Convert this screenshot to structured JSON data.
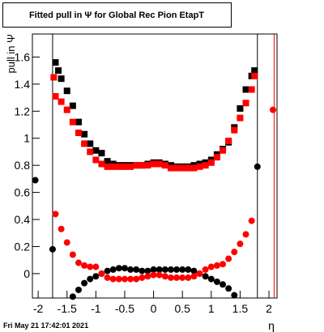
{
  "chart_data": {
    "type": "scatter",
    "title": "Fitted pull in  Ψ  for Global Rec Pion EtapT",
    "y_label": "pull in  Ψ",
    "x_label": "η",
    "footer": "Fri May 21 17:42:01 2021",
    "xlim": [
      -2.1,
      2.14
    ],
    "ylim": [
      -0.18,
      1.77
    ],
    "xticks": [
      -2,
      -1.5,
      -1,
      -0.5,
      0,
      0.5,
      1,
      1.5,
      2
    ],
    "yticks": [
      0,
      0.2,
      0.4,
      0.6,
      0.8,
      1,
      1.2,
      1.4,
      1.6
    ],
    "vlines": [
      {
        "x": -1.75,
        "color": "#000000"
      },
      {
        "x": 1.8,
        "color": "#000000"
      },
      {
        "x": 2.09,
        "color": "#ff0000"
      }
    ],
    "series": [
      {
        "color": "#000000",
        "marker": "square",
        "x": [
          -1.7,
          -1.65,
          -1.6,
          -1.5,
          -1.4,
          -1.3,
          -1.2,
          -1.1,
          -1.0,
          -0.9,
          -0.8,
          -0.7,
          -0.6,
          -0.5,
          -0.4,
          -0.3,
          -0.2,
          -0.1,
          0,
          0.1,
          0.2,
          0.3,
          0.4,
          0.5,
          0.6,
          0.7,
          0.8,
          0.9,
          1.0,
          1.1,
          1.2,
          1.3,
          1.4,
          1.5,
          1.6,
          1.7,
          1.75
        ],
        "values": [
          1.56,
          1.5,
          1.44,
          1.35,
          1.24,
          1.12,
          1.03,
          0.96,
          0.91,
          0.89,
          0.83,
          0.81,
          0.8,
          0.8,
          0.8,
          0.8,
          0.8,
          0.81,
          0.82,
          0.82,
          0.81,
          0.8,
          0.79,
          0.79,
          0.79,
          0.8,
          0.81,
          0.82,
          0.84,
          0.88,
          0.92,
          0.97,
          1.08,
          1.22,
          1.36,
          1.46,
          1.5
        ]
      },
      {
        "color": "#ff0000",
        "marker": "square",
        "x": [
          -1.73,
          -1.7,
          -1.6,
          -1.5,
          -1.4,
          -1.3,
          -1.2,
          -1.1,
          -1.0,
          -0.9,
          -0.8,
          -0.7,
          -0.6,
          -0.5,
          -0.4,
          -0.3,
          -0.2,
          -0.1,
          0,
          0.1,
          0.2,
          0.3,
          0.4,
          0.5,
          0.6,
          0.7,
          0.8,
          0.9,
          1.0,
          1.1,
          1.2,
          1.3,
          1.4,
          1.5,
          1.6,
          1.7,
          1.75
        ],
        "values": [
          1.45,
          1.31,
          1.27,
          1.21,
          1.12,
          1.04,
          0.96,
          0.9,
          0.84,
          0.81,
          0.79,
          0.79,
          0.79,
          0.79,
          0.79,
          0.8,
          0.8,
          0.8,
          0.81,
          0.81,
          0.8,
          0.78,
          0.78,
          0.78,
          0.78,
          0.78,
          0.79,
          0.8,
          0.82,
          0.86,
          0.91,
          0.98,
          1.06,
          1.15,
          1.26,
          1.36,
          1.46
        ]
      },
      {
        "color": "#000000",
        "marker": "circle",
        "x": [
          -1.4,
          -1.3,
          -1.2,
          -1.1,
          -1.0,
          -0.9,
          -0.8,
          -0.7,
          -0.6,
          -0.5,
          -0.4,
          -0.3,
          -0.2,
          -0.1,
          0,
          0.1,
          0.2,
          0.3,
          0.4,
          0.5,
          0.6,
          0.7,
          0.8,
          0.9,
          1.0,
          1.1,
          1.2,
          1.3,
          1.4
        ],
        "values": [
          -0.17,
          -0.12,
          -0.07,
          -0.04,
          -0.02,
          0.0,
          0.02,
          0.03,
          0.04,
          0.04,
          0.03,
          0.03,
          0.02,
          0.02,
          0.03,
          0.03,
          0.03,
          0.03,
          0.03,
          0.03,
          0.03,
          0.02,
          0.0,
          -0.02,
          -0.04,
          -0.06,
          -0.08,
          -0.11,
          -0.16
        ]
      },
      {
        "color": "#ff0000",
        "marker": "circle",
        "x": [
          -1.7,
          -1.6,
          -1.5,
          -1.4,
          -1.3,
          -1.2,
          -1.1,
          -1.0,
          -0.9,
          -0.8,
          -0.7,
          -0.6,
          -0.5,
          -0.4,
          -0.3,
          -0.2,
          -0.1,
          0,
          0.1,
          0.2,
          0.3,
          0.4,
          0.5,
          0.6,
          0.7,
          0.8,
          0.9,
          1.0,
          1.1,
          1.2,
          1.3,
          1.4,
          1.5,
          1.6,
          1.7
        ],
        "values": [
          0.44,
          0.33,
          0.23,
          0.14,
          0.08,
          0.06,
          0.05,
          0.05,
          0.0,
          -0.03,
          -0.04,
          -0.04,
          -0.04,
          -0.04,
          -0.04,
          -0.03,
          -0.02,
          -0.01,
          -0.01,
          -0.02,
          -0.03,
          -0.03,
          -0.03,
          -0.03,
          -0.02,
          0.0,
          0.03,
          0.05,
          0.06,
          0.07,
          0.11,
          0.16,
          0.22,
          0.29,
          0.39
        ]
      },
      {
        "color": "#000000",
        "marker": "circle",
        "x": [
          -2.05,
          -1.75,
          1.8
        ],
        "values": [
          0.69,
          0.18,
          0.79
        ]
      },
      {
        "color": "#ff0000",
        "marker": "circle",
        "x": [
          2.07
        ],
        "values": [
          1.21
        ]
      }
    ]
  }
}
